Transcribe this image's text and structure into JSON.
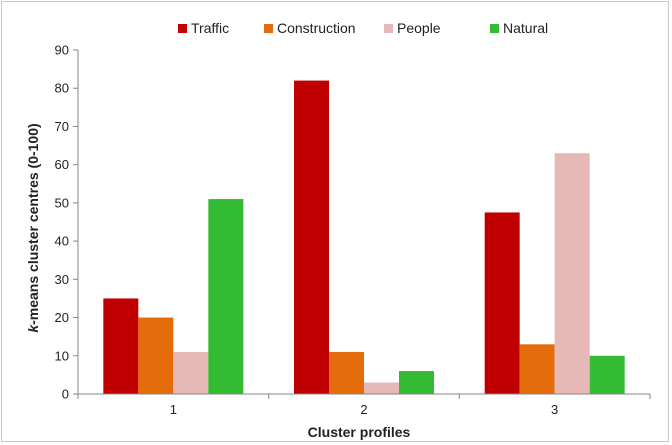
{
  "chart_data": {
    "type": "bar",
    "title": "",
    "xlabel": "Cluster profiles",
    "ylabel_prefix": "k",
    "ylabel_rest": "-means cluster centres (0-100)",
    "categories": [
      "1",
      "2",
      "3"
    ],
    "ylim": [
      0,
      90
    ],
    "yticks": [
      "0",
      "10",
      "20",
      "30",
      "40",
      "50",
      "60",
      "70",
      "80",
      "90"
    ],
    "grid": false,
    "legend_position": "top",
    "series": [
      {
        "name": "Traffic",
        "color": "#c00000",
        "values": [
          25,
          82,
          47.5
        ]
      },
      {
        "name": "Construction",
        "color": "#e46c0a",
        "values": [
          20,
          11,
          13
        ]
      },
      {
        "name": "People",
        "color": "#e6b9b8",
        "values": [
          11,
          3,
          63
        ]
      },
      {
        "name": "Natural",
        "color": "#33bb33",
        "values": [
          51,
          6,
          10
        ]
      }
    ]
  }
}
